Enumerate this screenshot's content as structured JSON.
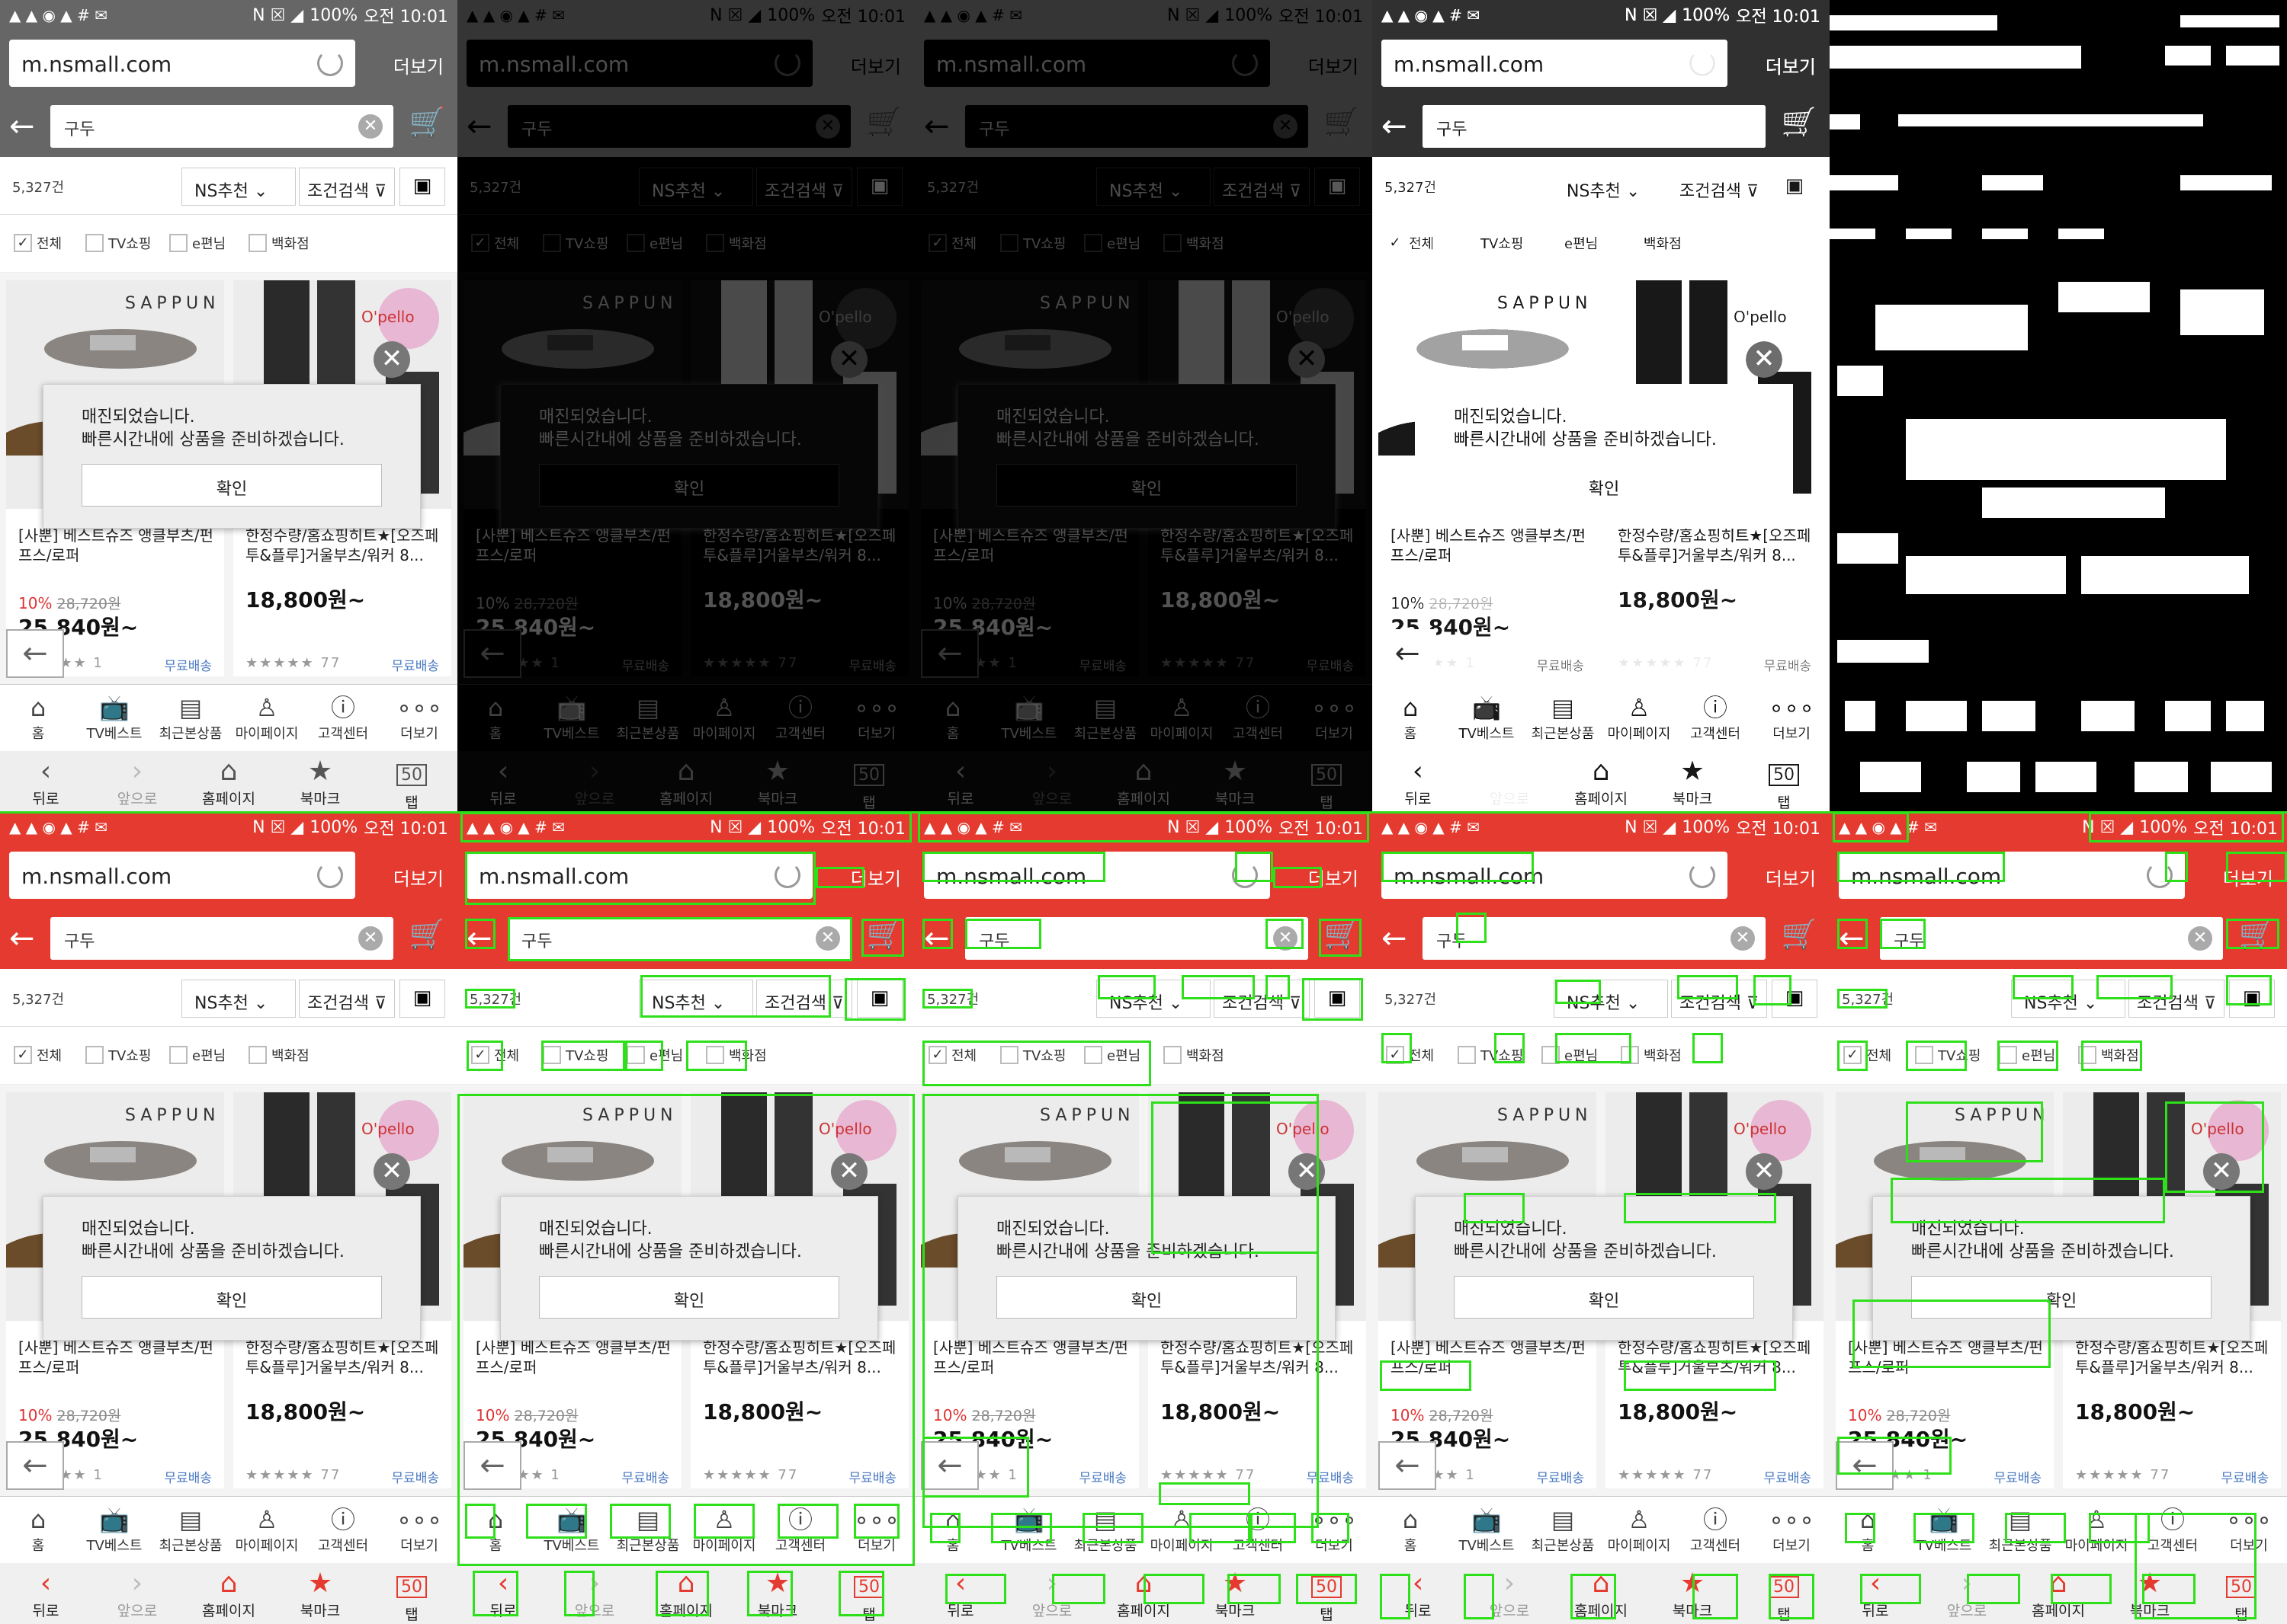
{
  "status": {
    "left_icons": "▲ ▲ ◉ ▲ # ✉",
    "battery": "100%",
    "time": "오전 10:01",
    "signal": "N ☒ ◢"
  },
  "url": {
    "text": "m.nsmall.com",
    "more": "더보기"
  },
  "search": {
    "query": "구두"
  },
  "filter": {
    "count": "5,327건",
    "sort": "NS추천",
    "condition": "조건검색"
  },
  "checks": [
    {
      "label": "전체",
      "checked": true
    },
    {
      "label": "TV쇼핑",
      "checked": false
    },
    {
      "label": "e편님",
      "checked": false
    },
    {
      "label": "백화점",
      "checked": false
    }
  ],
  "products": [
    {
      "brand": "SAPPUN",
      "title": "[사뿐] 베스트슈즈 앵클부츠/펀프스/로퍼",
      "discount": "10%",
      "orig": "28,720원",
      "price": "25,840원~",
      "stars": "★★★★★",
      "reviews": "1",
      "delivery": "무료배송"
    },
    {
      "brand": "O'pello",
      "title": "한정수량/홈쇼핑히트★[오즈페투&플루]거울부츠/워커 8...",
      "discount": "",
      "orig": "",
      "price": "18,800원~",
      "stars": "★★★★★",
      "reviews": "77",
      "delivery": "무료배송"
    }
  ],
  "popup": {
    "line1": "매진되었습니다.",
    "line2": "빠른시간내에 상품을 준비하겠습니다.",
    "confirm": "확인"
  },
  "bottom_nav": [
    "홈",
    "TV베스트",
    "최근본상품",
    "마이페이지",
    "고객센터",
    "더보기"
  ],
  "tab_bar": [
    "뒤로",
    "앞으로",
    "홈페이지",
    "북마크",
    "탭"
  ],
  "tab_count": "50"
}
